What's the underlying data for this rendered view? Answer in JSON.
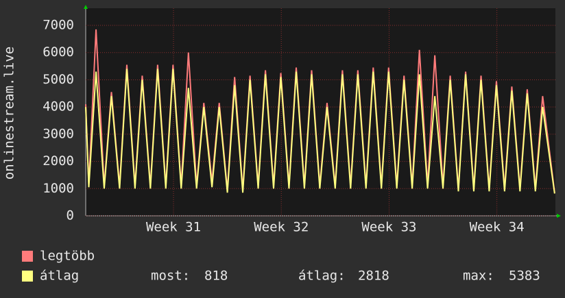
{
  "chart_data": {
    "type": "line",
    "y_label": "onlinestream.live",
    "x": [
      0,
      0.2,
      0.67,
      1.2,
      1.67,
      2.2,
      2.67,
      3.2,
      3.67,
      4.2,
      4.67,
      5.2,
      5.67,
      6.2,
      6.67,
      7.2,
      7.67,
      8.2,
      8.67,
      9.2,
      9.67,
      10.2,
      10.67,
      11.2,
      11.67,
      12.2,
      12.67,
      13.2,
      13.67,
      14.2,
      14.67,
      15.2,
      15.67,
      16.2,
      16.67,
      17.2,
      17.67,
      18.2,
      18.67,
      19.2,
      19.67,
      20.2,
      20.67,
      21.2,
      21.67,
      22.2,
      22.67,
      23.2,
      23.67,
      24.2,
      24.67,
      25.2,
      25.67,
      26.2,
      26.67,
      27.2,
      27.67,
      28.2,
      28.67,
      29.2,
      29.67,
      30.45
    ],
    "series": [
      {
        "name": "legtöbb",
        "color": "#ff7b7b",
        "values": [
          4100,
          1150,
          6850,
          1100,
          4550,
          1100,
          5550,
          1100,
          5150,
          1100,
          5550,
          1100,
          5550,
          1100,
          6000,
          1100,
          4150,
          1250,
          4150,
          950,
          5100,
          950,
          5150,
          1100,
          5350,
          1100,
          5250,
          1100,
          5450,
          1100,
          5350,
          1100,
          4150,
          1100,
          5350,
          1100,
          5350,
          1100,
          5450,
          1100,
          5450,
          1100,
          5150,
          1100,
          6100,
          1100,
          5900,
          1100,
          5150,
          1000,
          5300,
          1000,
          5150,
          1000,
          4950,
          1000,
          4750,
          1000,
          4650,
          1000,
          4400,
          850
        ]
      },
      {
        "name": "átlag",
        "color": "#ffff80",
        "values": [
          4000,
          1050,
          5300,
          1000,
          4400,
          1000,
          5400,
          1000,
          5000,
          1000,
          5400,
          1000,
          5400,
          1000,
          4700,
          1000,
          4000,
          1050,
          4000,
          850,
          4800,
          850,
          5000,
          1000,
          5200,
          1000,
          5100,
          1000,
          5300,
          1000,
          5200,
          1000,
          4000,
          1000,
          5200,
          1000,
          5200,
          1000,
          5300,
          1000,
          5300,
          1000,
          5000,
          1000,
          5200,
          1000,
          4400,
          1000,
          5000,
          900,
          5200,
          900,
          5000,
          900,
          4800,
          900,
          4600,
          900,
          4500,
          900,
          4000,
          818
        ]
      }
    ],
    "xlim": [
      0,
      30.5
    ],
    "xticks": [
      {
        "value": 5.7,
        "label": "Week 31"
      },
      {
        "value": 12.7,
        "label": "Week 32"
      },
      {
        "value": 19.7,
        "label": "Week 33"
      },
      {
        "value": 26.7,
        "label": "Week 34"
      }
    ],
    "ylim": [
      0,
      7630
    ],
    "yticks": [
      0,
      1000,
      2000,
      3000,
      4000,
      5000,
      6000,
      7000
    ],
    "grid": true,
    "stats": [
      {
        "label": "most:",
        "value": 818
      },
      {
        "label": "átlag:",
        "value": 2818
      },
      {
        "label": "max:",
        "value": 5383
      }
    ]
  }
}
